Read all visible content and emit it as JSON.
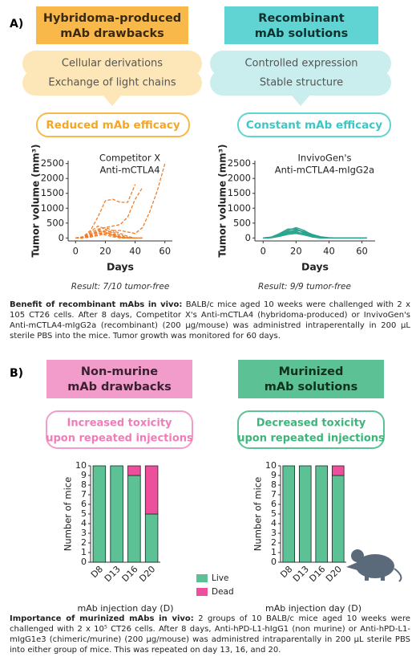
{
  "panel_a": {
    "label": "A)",
    "left": {
      "header": [
        "Hybridoma-produced",
        "mAb drawbacks"
      ],
      "items": [
        "Cellular derivations",
        "Exchange of light chains"
      ],
      "outcome": "Reduced mAb efficacy",
      "result": "Result: 7/10 tumor-free"
    },
    "right": {
      "header": [
        "Recombinant",
        "mAb solutions"
      ],
      "items": [
        "Controlled expression",
        "Stable structure"
      ],
      "outcome": "Constant mAb efficacy",
      "result": "Result:  9/9 tumor-free"
    }
  },
  "caption_a": {
    "lead": "Benefit of recombinant mAbs in vivo:",
    "text": "BALB/c mice aged 10 weeks were challenged with 2 x 105 CT26 cells. After 8 days, Competitor X's Anti-mCTLA4 (hybridoma-produced) or InvivoGen's Anti-mCTLA4-mIgG2a (recombinant) (200 µg/mouse) was administred intraperentally in 200 µL sterile PBS into the mice. Tumor growth was monitored for 60 days."
  },
  "panel_b": {
    "label": "B)",
    "left": {
      "header": [
        "Non-murine",
        "mAb drawbacks"
      ],
      "outcome": [
        "Increased toxicity",
        "upon repeated injections"
      ]
    },
    "right": {
      "header": [
        "Murinized",
        "mAb solutions"
      ],
      "outcome": [
        "Decreased toxicity",
        "upon repeated injections"
      ]
    }
  },
  "caption_b": {
    "lead": "Importance of murinized mAbs in vivo:",
    "text": "2 groups of 10 BALB/c mice aged 10 weeks were challenged with 2 x 10⁵ CT26 cells. After 8 days, Anti-hPD-L1-hIgG1 (non murine) or Anti-hPD-L1-mIgG1e3 (chimeric/murine) (200 µg/mouse) was administred intraparentally in 200 µL sterile PBS into either group of mice. This was repeated on day 13, 16, and 20."
  },
  "chart_data": [
    {
      "type": "line",
      "title": [
        "Competitor X",
        "Anti-mCTLA4"
      ],
      "x_label": "Days",
      "y_label": "Tumor volume (mm³)",
      "dashed": true,
      "x": [
        0,
        5,
        10,
        15,
        20,
        25,
        30,
        35,
        40,
        45,
        50,
        55,
        60
      ],
      "xlim": [
        -5,
        65
      ],
      "xticks": [
        0,
        20,
        40,
        60
      ],
      "ylim": [
        -100,
        2600
      ],
      "yticks": [
        0,
        500,
        1000,
        1500,
        2000,
        2500
      ],
      "series": [
        {
          "color": "#f07d2a",
          "values": [
            0,
            10,
            30,
            80,
            150,
            250,
            250,
            200,
            150,
            350,
            900,
            1600,
            2500
          ]
        },
        {
          "color": "#f07d2a",
          "values": [
            0,
            20,
            80,
            250,
            350,
            400,
            450,
            700,
            1300,
            1700,
            null,
            null,
            null
          ]
        },
        {
          "color": "#f07d2a",
          "values": [
            0,
            40,
            250,
            700,
            1250,
            1300,
            1200,
            1200,
            1800,
            null,
            null,
            null,
            null
          ]
        },
        {
          "color": "#f07d2a",
          "values": [
            0,
            20,
            150,
            300,
            350,
            250,
            150,
            50,
            0,
            0,
            null,
            null,
            null
          ]
        },
        {
          "color": "#f07d2a",
          "values": [
            0,
            10,
            100,
            200,
            250,
            200,
            100,
            20,
            0,
            0,
            null,
            null,
            null
          ]
        },
        {
          "color": "#f07d2a",
          "values": [
            0,
            30,
            200,
            400,
            300,
            150,
            50,
            0,
            0,
            null,
            null,
            null,
            null
          ]
        },
        {
          "color": "#f07d2a",
          "values": [
            0,
            10,
            50,
            150,
            200,
            120,
            50,
            0,
            0,
            null,
            null,
            null,
            null
          ]
        },
        {
          "color": "#f07d2a",
          "values": [
            0,
            5,
            80,
            250,
            200,
            100,
            20,
            0,
            0,
            null,
            null,
            null,
            null
          ]
        },
        {
          "color": "#f07d2a",
          "values": [
            0,
            15,
            120,
            180,
            100,
            40,
            0,
            0,
            0,
            null,
            null,
            null,
            null
          ]
        },
        {
          "color": "#f07d2a",
          "values": [
            0,
            5,
            30,
            100,
            150,
            80,
            10,
            0,
            0,
            null,
            null,
            null,
            null
          ]
        }
      ]
    },
    {
      "type": "line",
      "title": [
        "InvivoGen's",
        "Anti-mCTLA4-mIgG2a"
      ],
      "x_label": "Days",
      "y_label": "Tumor volume (mm³)",
      "dashed": false,
      "x": [
        0,
        5,
        10,
        15,
        20,
        25,
        30,
        35,
        40,
        45,
        50,
        55,
        60,
        63
      ],
      "xlim": [
        -5,
        68
      ],
      "xticks": [
        0,
        20,
        40,
        60
      ],
      "ylim": [
        -100,
        2600
      ],
      "yticks": [
        0,
        500,
        1000,
        1500,
        2000,
        2500
      ],
      "series": [
        {
          "color": "#2aa58f",
          "values": [
            0,
            20,
            100,
            250,
            350,
            250,
            100,
            30,
            0,
            0,
            0,
            0,
            0,
            0
          ]
        },
        {
          "color": "#2aa58f",
          "values": [
            0,
            30,
            150,
            300,
            300,
            200,
            80,
            20,
            0,
            0,
            0,
            0,
            0,
            0
          ]
        },
        {
          "color": "#2aa58f",
          "values": [
            0,
            10,
            80,
            200,
            280,
            180,
            60,
            10,
            0,
            0,
            0,
            0,
            0,
            0
          ]
        },
        {
          "color": "#2aa58f",
          "values": [
            0,
            20,
            120,
            220,
            250,
            220,
            120,
            40,
            10,
            0,
            0,
            0,
            0,
            0
          ]
        },
        {
          "color": "#2aa58f",
          "values": [
            0,
            10,
            60,
            150,
            200,
            150,
            50,
            10,
            0,
            0,
            0,
            0,
            0,
            0
          ]
        },
        {
          "color": "#2aa58f",
          "values": [
            0,
            15,
            90,
            180,
            220,
            120,
            40,
            0,
            0,
            0,
            0,
            0,
            0,
            0
          ]
        },
        {
          "color": "#2aa58f",
          "values": [
            0,
            5,
            50,
            120,
            150,
            100,
            30,
            0,
            0,
            0,
            0,
            0,
            0,
            0
          ]
        },
        {
          "color": "#2aa58f",
          "values": [
            0,
            25,
            130,
            260,
            320,
            160,
            60,
            20,
            0,
            0,
            0,
            0,
            0,
            0
          ]
        },
        {
          "color": "#2aa58f",
          "values": [
            0,
            10,
            70,
            160,
            180,
            140,
            70,
            20,
            0,
            0,
            0,
            0,
            0,
            0
          ]
        }
      ]
    },
    {
      "type": "bar",
      "stacked": true,
      "legend": true,
      "x_label": "mAb injection day (D)",
      "y_label": "Number of mice",
      "categories": [
        "D8",
        "D13",
        "D16",
        "D20"
      ],
      "ylim": [
        0,
        10
      ],
      "yticks": [
        0,
        1,
        2,
        3,
        4,
        5,
        6,
        7,
        8,
        9,
        10
      ],
      "series": [
        {
          "name": "Live",
          "color": "#5cc194",
          "values": [
            10,
            10,
            9,
            5
          ]
        },
        {
          "name": "Dead",
          "color": "#ee4f9d",
          "values": [
            0,
            0,
            1,
            5
          ]
        }
      ]
    },
    {
      "type": "bar",
      "stacked": true,
      "legend": false,
      "x_label": "mAb injection day (D)",
      "y_label": "Number of mice",
      "categories": [
        "D8",
        "D13",
        "D16",
        "D20"
      ],
      "ylim": [
        0,
        10
      ],
      "yticks": [
        0,
        1,
        2,
        3,
        4,
        5,
        6,
        7,
        8,
        9,
        10
      ],
      "series": [
        {
          "name": "Live",
          "color": "#5cc194",
          "values": [
            10,
            10,
            10,
            9
          ]
        },
        {
          "name": "Dead",
          "color": "#ee4f9d",
          "values": [
            0,
            0,
            0,
            1
          ]
        }
      ]
    }
  ]
}
